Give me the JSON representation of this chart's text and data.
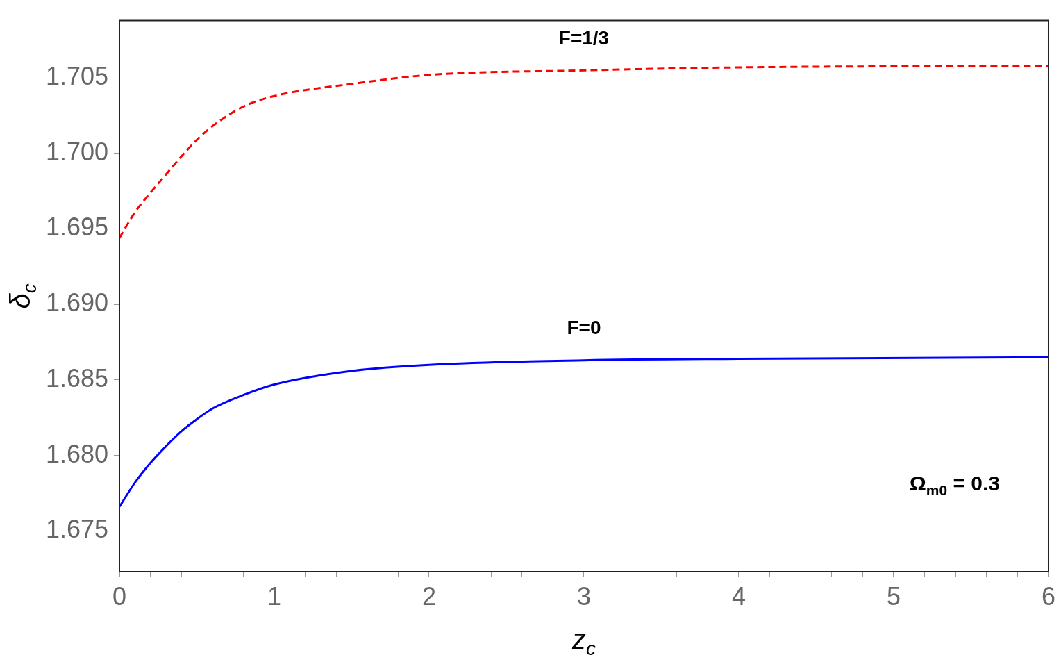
{
  "chart_data": {
    "type": "line",
    "xlabel": "z$_{c}$",
    "ylabel": "δ$_{c}$",
    "xlim": [
      0,
      6
    ],
    "ylim": [
      1.6723,
      1.7088
    ],
    "xticks": [
      0,
      {
        "value": 0.2,
        "label": null
      },
      {
        "value": 0.4,
        "label": null
      },
      {
        "value": 0.6,
        "label": null
      },
      {
        "value": 0.8,
        "label": null
      },
      1,
      {
        "value": 1.2,
        "label": null
      },
      {
        "value": 1.4,
        "label": null
      },
      {
        "value": 1.6,
        "label": null
      },
      {
        "value": 1.8,
        "label": null
      },
      2,
      {
        "value": 2.2,
        "label": null
      },
      {
        "value": 2.4,
        "label": null
      },
      {
        "value": 2.6,
        "label": null
      },
      {
        "value": 2.8,
        "label": null
      },
      3,
      {
        "value": 3.2,
        "label": null
      },
      {
        "value": 3.4,
        "label": null
      },
      {
        "value": 3.6,
        "label": null
      },
      {
        "value": 3.8,
        "label": null
      },
      4,
      {
        "value": 4.2,
        "label": null
      },
      {
        "value": 4.4,
        "label": null
      },
      {
        "value": 4.6,
        "label": null
      },
      {
        "value": 4.8,
        "label": null
      },
      5,
      {
        "value": 5.2,
        "label": null
      },
      {
        "value": 5.4,
        "label": null
      },
      {
        "value": 5.6,
        "label": null
      },
      {
        "value": 5.8,
        "label": null
      },
      6
    ],
    "yticks": [
      {
        "value": 1.675,
        "label": "1.675"
      },
      {
        "value": 1.68,
        "label": "1.680"
      },
      {
        "value": 1.685,
        "label": "1.685"
      },
      {
        "value": 1.69,
        "label": "1.690"
      },
      {
        "value": 1.695,
        "label": "1.695"
      },
      {
        "value": 1.7,
        "label": "1.700"
      },
      {
        "value": 1.705,
        "label": "1.705"
      }
    ],
    "x": [
      0,
      0.1,
      0.2,
      0.3,
      0.4,
      0.5,
      0.6,
      0.8,
      1,
      1.5,
      2,
      3,
      4,
      6
    ],
    "series": [
      {
        "name": "F=1/3",
        "color": "#ff0000",
        "line_style": "dashed",
        "values": [
          1.6944,
          1.6961,
          1.6974,
          1.6986,
          1.6998,
          1.7009,
          1.7018,
          1.7031,
          1.7038,
          1.7046,
          1.7052,
          1.7055,
          1.7057,
          1.7058
        ]
      },
      {
        "name": "F=0",
        "color": "#0000ff",
        "line_style": "solid",
        "values": [
          1.6766,
          1.6782,
          1.6795,
          1.6806,
          1.6816,
          1.6824,
          1.6831,
          1.684,
          1.6847,
          1.6856,
          1.686,
          1.6863,
          1.6864,
          1.6865
        ]
      }
    ],
    "annotations": [
      "Ω$_{m0}$ = 0.3"
    ],
    "legend": false,
    "marker": "none"
  }
}
